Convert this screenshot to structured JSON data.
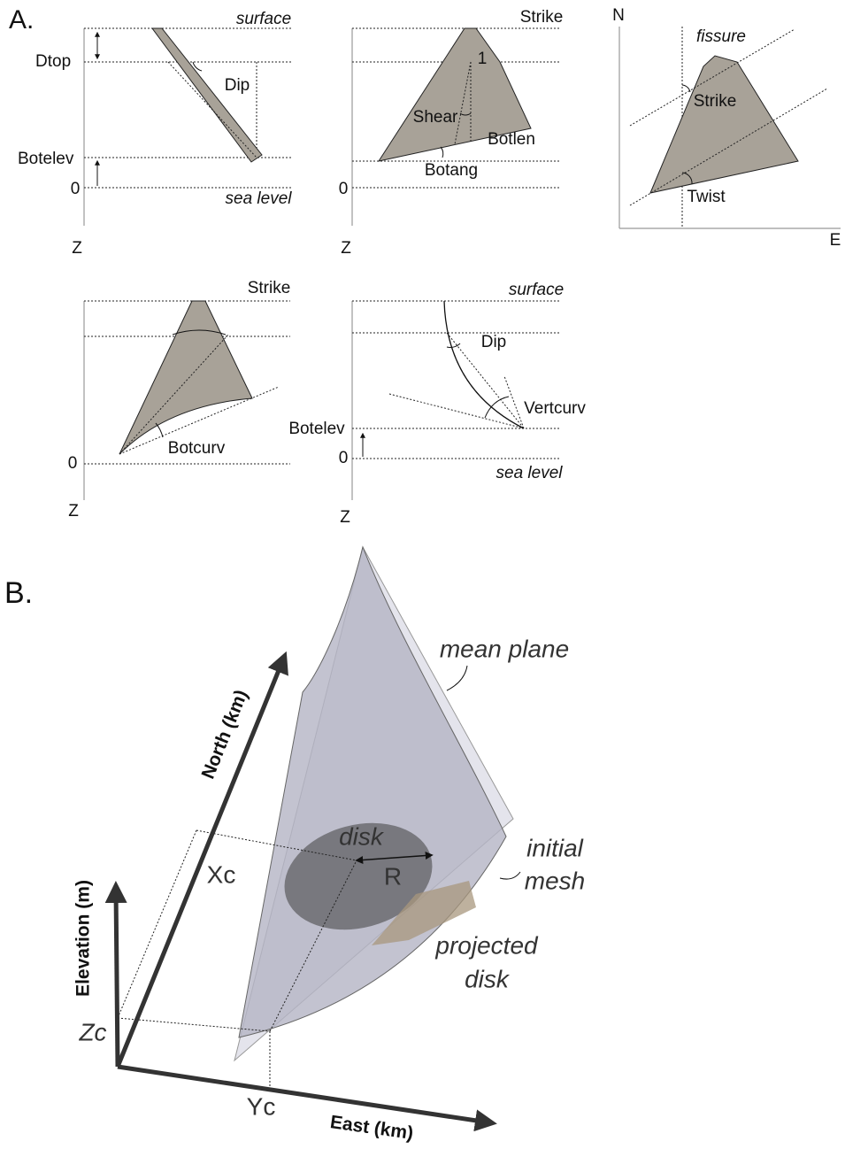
{
  "panel_a": {
    "label": "A.",
    "depth": {
      "surface": "surface",
      "dtop": "Dtop",
      "dip": "Dip",
      "botelev": "Botelev",
      "zero": "0",
      "sea_level": "sea level",
      "z": "Z"
    },
    "shear": {
      "strike": "Strike",
      "one": "1",
      "shear": "Shear",
      "botlen": "Botlen",
      "botang": "Botang",
      "zero": "0",
      "z": "Z"
    },
    "map": {
      "n": "N",
      "fissure": "fissure",
      "strike": "Strike",
      "twist": "Twist",
      "e": "E"
    },
    "botcurv": {
      "strike": "Strike",
      "botcurv": "Botcurv",
      "zero": "0",
      "z": "Z"
    },
    "vertcurv": {
      "surface": "surface",
      "dip": "Dip",
      "vertcurv": "Vertcurv",
      "botelev": "Botelev",
      "zero": "0",
      "sea_level": "sea level",
      "z": "Z"
    }
  },
  "panel_b": {
    "label": "B.",
    "mean_plane": "mean plane",
    "north_axis": "North (km)",
    "disk": "disk",
    "r": "R",
    "xc": "Xc",
    "initial_mesh": [
      "initial",
      "mesh"
    ],
    "projected_disk": [
      "projected",
      "disk"
    ],
    "elevation_axis": "Elevation (m)",
    "zc": "Zc",
    "yc": "Yc",
    "east_axis": "East (km)"
  }
}
